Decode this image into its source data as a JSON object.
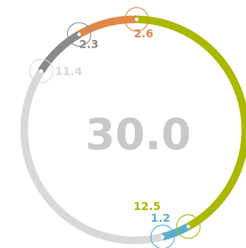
{
  "chart_data": {
    "type": "donut",
    "total_label": "30.0",
    "center_color": "#c8c8c8",
    "segments": [
      {
        "label": "12.5",
        "value": 12.5,
        "color": "#aab800"
      },
      {
        "label": "1.2",
        "value": 1.2,
        "color": "#5aaecb"
      },
      {
        "label": "11.4",
        "value": 11.4,
        "color": "#d9d9d9"
      },
      {
        "label": "2.3",
        "value": 2.3,
        "color": "#8a8a8a"
      },
      {
        "label": "2.6",
        "value": 2.6,
        "color": "#e0874a"
      }
    ]
  }
}
